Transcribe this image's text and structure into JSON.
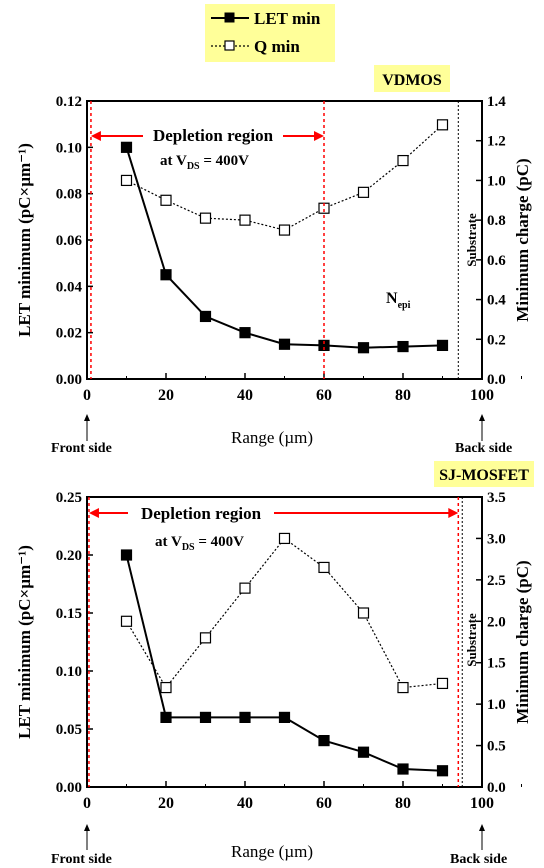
{
  "legend": {
    "items": [
      {
        "label": "LET min",
        "marker": "filled-square",
        "line": "solid"
      },
      {
        "label": "Q min",
        "marker": "open-square",
        "line": "dotted"
      }
    ]
  },
  "colors": {
    "legend_bg": "#ffff99",
    "tag_bg": "#ffff99",
    "depletion": "#ff0000",
    "series": "#000000"
  },
  "chart_data": [
    {
      "type": "line",
      "panel_tag": "VDMOS",
      "xlabel": "Range (µm)",
      "ylabel": "LET minimum (pC×µm⁻¹)",
      "y2label": "Minimum charge (pC)",
      "xlim": [
        0,
        100
      ],
      "ylim": [
        0,
        0.12
      ],
      "y2lim": [
        0,
        1.4
      ],
      "x_ticks": [
        "0",
        "20",
        "40",
        "60",
        "80",
        "100"
      ],
      "y_ticks": [
        "0.00",
        "0.02",
        "0.04",
        "0.06",
        "0.08",
        "0.10",
        "0.12"
      ],
      "y2_ticks": [
        "0.0",
        "0.2",
        "0.4",
        "0.6",
        "0.8",
        "1.0",
        "1.2",
        "1.4"
      ],
      "x_edge_labels": {
        "left": "Front side",
        "right": "Back side"
      },
      "annotations": {
        "depletion_title": "Depletion region",
        "depletion_cond_prefix": "at V",
        "depletion_cond_sub": "DS",
        "depletion_cond_suffix": " = 400V",
        "region_main": "N",
        "region_sub": "epi",
        "substrate": "Substrate"
      },
      "depletion_range": [
        1,
        60
      ],
      "substrate_x": 94,
      "series": [
        {
          "name": "LET min",
          "axis": "left",
          "x": [
            10,
            20,
            30,
            40,
            50,
            60,
            70,
            80,
            90
          ],
          "values": [
            0.1,
            0.045,
            0.027,
            0.02,
            0.015,
            0.0145,
            0.0135,
            0.014,
            0.0145
          ]
        },
        {
          "name": "Q min",
          "axis": "right",
          "x": [
            10,
            20,
            30,
            40,
            50,
            60,
            70,
            80,
            90
          ],
          "values": [
            1.0,
            0.9,
            0.81,
            0.8,
            0.75,
            0.86,
            0.94,
            1.1,
            1.28
          ]
        }
      ]
    },
    {
      "type": "line",
      "panel_tag": "SJ-MOSFET",
      "xlabel": "Range (µm)",
      "ylabel": "LET minimum (pC×µm⁻¹)",
      "y2label": "Minimum charge (pC)",
      "xlim": [
        0,
        100
      ],
      "ylim": [
        0,
        0.25
      ],
      "y2lim": [
        0,
        3.5
      ],
      "x_ticks": [
        "0",
        "20",
        "40",
        "60",
        "80",
        "100"
      ],
      "y_ticks": [
        "0.00",
        "0.05",
        "0.10",
        "0.15",
        "0.20",
        "0.25"
      ],
      "y2_ticks": [
        "0.0",
        "0.5",
        "1.0",
        "1.5",
        "2.0",
        "2.5",
        "3.0",
        "3.5"
      ],
      "x_edge_labels": {
        "left": "Front side",
        "right": "Back side"
      },
      "annotations": {
        "depletion_title": "Depletion region",
        "depletion_cond_prefix": "at V",
        "depletion_cond_sub": "DS",
        "depletion_cond_suffix": " = 400V",
        "substrate": "Substrate"
      },
      "depletion_range": [
        0.5,
        94
      ],
      "substrate_x": 95,
      "series": [
        {
          "name": "LET min",
          "axis": "left",
          "x": [
            10,
            20,
            30,
            40,
            50,
            60,
            70,
            80,
            90
          ],
          "values": [
            0.2,
            0.06,
            0.06,
            0.06,
            0.06,
            0.04,
            0.03,
            0.0155,
            0.014
          ]
        },
        {
          "name": "Q min",
          "axis": "right",
          "x": [
            10,
            20,
            30,
            40,
            50,
            60,
            70,
            80,
            90
          ],
          "values": [
            2.0,
            1.2,
            1.8,
            2.4,
            3.0,
            2.65,
            2.1,
            1.2,
            1.25
          ]
        }
      ]
    }
  ]
}
